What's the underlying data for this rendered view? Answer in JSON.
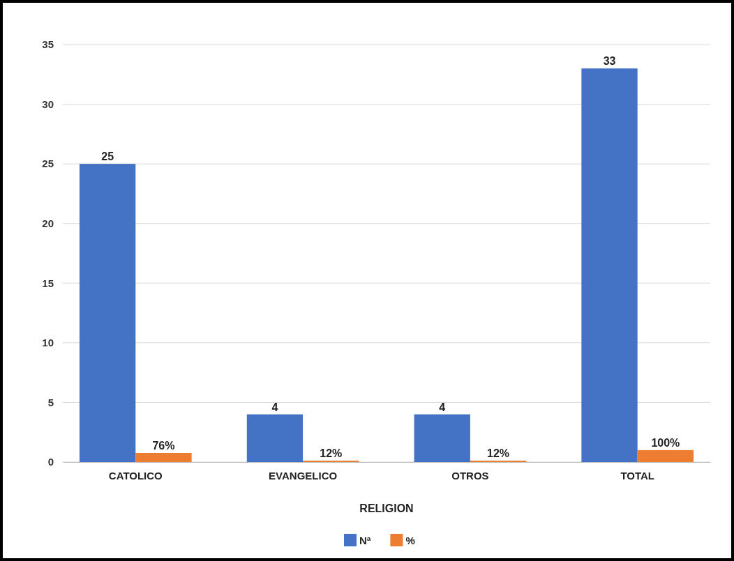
{
  "chart_data": {
    "type": "bar",
    "xlabel": "RELIGION",
    "categories": [
      "CATOLICO",
      "EVANGELICO",
      "OTROS",
      "TOTAL"
    ],
    "series": [
      {
        "name": "Nª",
        "color": "#4472c4",
        "values": [
          25,
          4,
          4,
          33
        ],
        "value_labels": [
          "25",
          "4",
          "4",
          "33"
        ]
      },
      {
        "name": "%",
        "color": "#ed7d31",
        "values": [
          0.76,
          0.12,
          0.12,
          1
        ],
        "value_labels": [
          "76%",
          "12%",
          "12%",
          "100%"
        ]
      }
    ],
    "ylim": [
      0,
      35
    ],
    "yticks": [
      0,
      5,
      10,
      15,
      20,
      25,
      30,
      35
    ],
    "grid": "y",
    "legend": "bottom"
  }
}
